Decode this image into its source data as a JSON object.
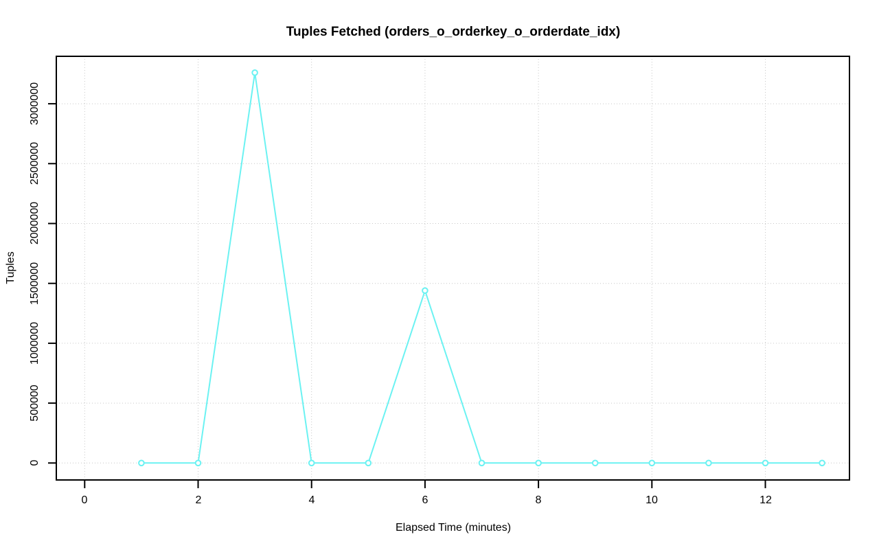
{
  "page": {
    "background": "#ffffff"
  },
  "chart_data": {
    "type": "line",
    "title": "Tuples Fetched (orders_o_orderkey_o_orderdate_idx)",
    "xlabel": "Elapsed Time (minutes)",
    "ylabel": "Tuples",
    "x": [
      1,
      2,
      3,
      4,
      5,
      6,
      7,
      8,
      9,
      10,
      11,
      12,
      13
    ],
    "series": [
      {
        "name": "Tuples Fetched",
        "values": [
          0,
          0,
          3260000,
          0,
          0,
          1440000,
          0,
          0,
          0,
          0,
          0,
          0,
          0
        ]
      }
    ],
    "x_tick_values": [
      0,
      2,
      4,
      6,
      8,
      10,
      12
    ],
    "x_tick_labels": [
      "0",
      "2",
      "4",
      "6",
      "8",
      "10",
      "12"
    ],
    "y_tick_values": [
      0,
      500000,
      1000000,
      1500000,
      2000000,
      2500000,
      3000000
    ],
    "y_tick_labels": [
      "0",
      "500000",
      "1000000",
      "1500000",
      "2000000",
      "2500000",
      "3000000"
    ],
    "xlim": [
      -0.5,
      13.5
    ],
    "ylim": [
      -150000,
      3400000
    ],
    "grid": "dotted",
    "legend": "none",
    "marker": "open-circle",
    "line_color": "#6bf2f2",
    "marker_fill": "#ffffff",
    "grid_color": "#c6c6c6",
    "axis_color": "#000000"
  }
}
